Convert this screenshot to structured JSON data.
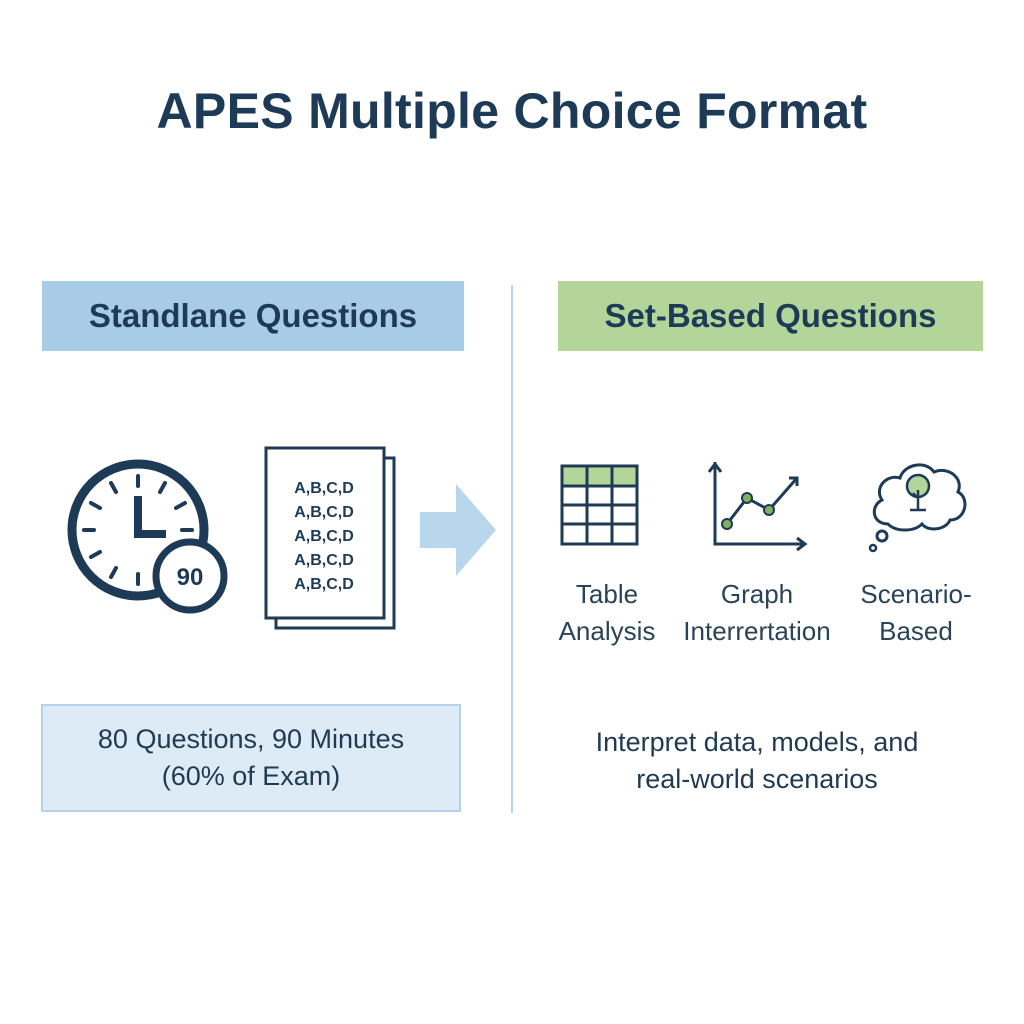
{
  "title": "APES Multiple Choice Format",
  "left": {
    "header": "Standlane Questions",
    "clock_badge": "90",
    "sheet_lines": [
      "A,B,C,D",
      "A,B,C,D",
      "A,B,C,D",
      "A,B,C,D",
      "A,B,C,D"
    ],
    "info_line1": "80 Questions, 90 Minutes",
    "info_line2": "(60% of Exam)"
  },
  "right": {
    "header": "Set-Based Questions",
    "items": [
      {
        "icon": "table-icon",
        "line1": "Table",
        "line2": "Analysis"
      },
      {
        "icon": "line-graph-icon",
        "line1": "Graph",
        "line2": "Interrertation"
      },
      {
        "icon": "thought-bubble-tree-icon",
        "line1": "Scenario-",
        "line2": "Based"
      }
    ],
    "desc_line1": "Interpret data, models, and",
    "desc_line2": "real-world scenarios"
  },
  "colors": {
    "navy": "#1d3a56",
    "blue_header": "#a9cce6",
    "green_header": "#b4d59a",
    "arrow": "#b9d7ec",
    "info_bg": "#ddebf7",
    "accent_green": "#7fb25f"
  }
}
